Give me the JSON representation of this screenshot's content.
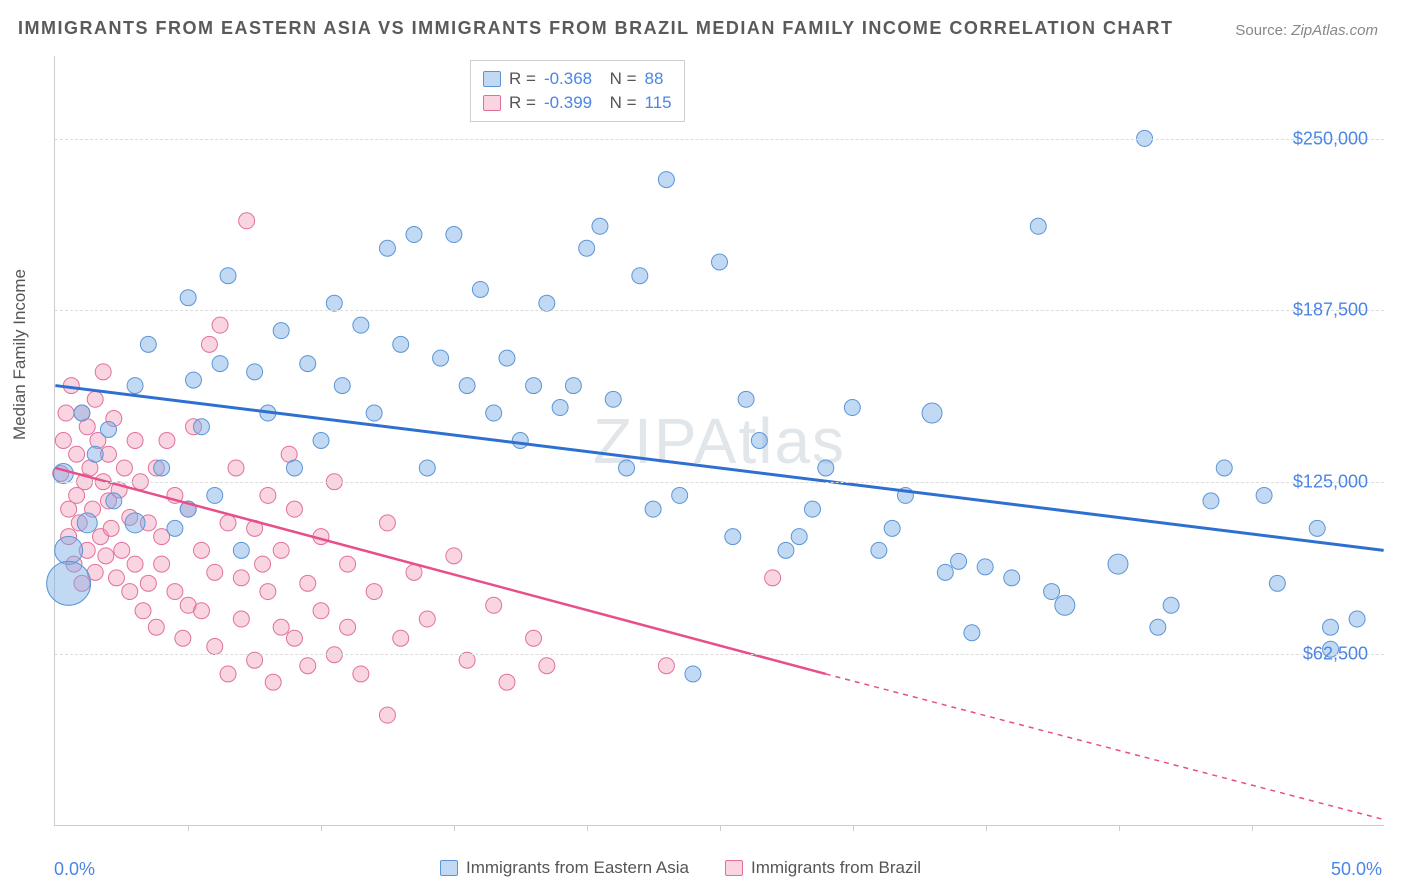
{
  "title": "IMMIGRANTS FROM EASTERN ASIA VS IMMIGRANTS FROM BRAZIL MEDIAN FAMILY INCOME CORRELATION CHART",
  "source": {
    "label": "Source:",
    "name": "ZipAtlas.com"
  },
  "ylabel": "Median Family Income",
  "watermark": "ZIPAtlas",
  "chart": {
    "type": "scatter",
    "background_color": "#ffffff",
    "grid_color": "#dcdcdc",
    "axis_color": "#cccccc",
    "xlim": [
      0,
      50
    ],
    "ylim": [
      0,
      280000
    ],
    "x_ticks_minor": [
      5,
      10,
      15,
      20,
      25,
      30,
      35,
      40,
      45
    ],
    "x_tick_labels": {
      "min": "0.0%",
      "max": "50.0%"
    },
    "y_grid": [
      {
        "value": 62500,
        "label": "$62,500"
      },
      {
        "value": 125000,
        "label": "$125,000"
      },
      {
        "value": 187500,
        "label": "$187,500"
      },
      {
        "value": 250000,
        "label": "$250,000"
      }
    ],
    "label_color": "#4a86e8",
    "label_fontsize": 18,
    "title_color": "#5a5a5a",
    "title_fontsize": 18
  },
  "series": {
    "blue": {
      "name": "Immigrants from Eastern Asia",
      "R": "-0.368",
      "N": "88",
      "fill": "rgba(120,170,230,0.45)",
      "stroke": "#5b95d6",
      "line_color": "#2f6fd0",
      "line_width": 3,
      "trend": {
        "x1": 0,
        "y1": 160000,
        "x2": 50,
        "y2": 100000,
        "dash_after_x": 50
      },
      "points": [
        {
          "x": 0.3,
          "y": 128000,
          "r": 10
        },
        {
          "x": 0.5,
          "y": 100000,
          "r": 14
        },
        {
          "x": 0.5,
          "y": 88000,
          "r": 22
        },
        {
          "x": 1.0,
          "y": 150000,
          "r": 8
        },
        {
          "x": 1.2,
          "y": 110000,
          "r": 10
        },
        {
          "x": 1.5,
          "y": 135000,
          "r": 8
        },
        {
          "x": 2.0,
          "y": 144000,
          "r": 8
        },
        {
          "x": 2.2,
          "y": 118000,
          "r": 8
        },
        {
          "x": 3.0,
          "y": 160000,
          "r": 8
        },
        {
          "x": 3.0,
          "y": 110000,
          "r": 10
        },
        {
          "x": 3.5,
          "y": 175000,
          "r": 8
        },
        {
          "x": 4.0,
          "y": 130000,
          "r": 8
        },
        {
          "x": 4.5,
          "y": 108000,
          "r": 8
        },
        {
          "x": 5.0,
          "y": 192000,
          "r": 8
        },
        {
          "x": 5.0,
          "y": 115000,
          "r": 8
        },
        {
          "x": 5.2,
          "y": 162000,
          "r": 8
        },
        {
          "x": 5.5,
          "y": 145000,
          "r": 8
        },
        {
          "x": 6.0,
          "y": 120000,
          "r": 8
        },
        {
          "x": 6.2,
          "y": 168000,
          "r": 8
        },
        {
          "x": 6.5,
          "y": 200000,
          "r": 8
        },
        {
          "x": 7.0,
          "y": 100000,
          "r": 8
        },
        {
          "x": 7.5,
          "y": 165000,
          "r": 8
        },
        {
          "x": 8.0,
          "y": 150000,
          "r": 8
        },
        {
          "x": 8.5,
          "y": 180000,
          "r": 8
        },
        {
          "x": 9.0,
          "y": 130000,
          "r": 8
        },
        {
          "x": 9.5,
          "y": 168000,
          "r": 8
        },
        {
          "x": 10.0,
          "y": 140000,
          "r": 8
        },
        {
          "x": 10.5,
          "y": 190000,
          "r": 8
        },
        {
          "x": 10.8,
          "y": 160000,
          "r": 8
        },
        {
          "x": 11.5,
          "y": 182000,
          "r": 8
        },
        {
          "x": 12.0,
          "y": 150000,
          "r": 8
        },
        {
          "x": 12.5,
          "y": 210000,
          "r": 8
        },
        {
          "x": 13.0,
          "y": 175000,
          "r": 8
        },
        {
          "x": 13.5,
          "y": 215000,
          "r": 8
        },
        {
          "x": 14.0,
          "y": 130000,
          "r": 8
        },
        {
          "x": 14.5,
          "y": 170000,
          "r": 8
        },
        {
          "x": 15.0,
          "y": 215000,
          "r": 8
        },
        {
          "x": 15.5,
          "y": 160000,
          "r": 8
        },
        {
          "x": 16.0,
          "y": 195000,
          "r": 8
        },
        {
          "x": 16.5,
          "y": 150000,
          "r": 8
        },
        {
          "x": 17.0,
          "y": 170000,
          "r": 8
        },
        {
          "x": 17.5,
          "y": 140000,
          "r": 8
        },
        {
          "x": 18.0,
          "y": 160000,
          "r": 8
        },
        {
          "x": 18.5,
          "y": 190000,
          "r": 8
        },
        {
          "x": 19.0,
          "y": 152000,
          "r": 8
        },
        {
          "x": 19.5,
          "y": 160000,
          "r": 8
        },
        {
          "x": 20.0,
          "y": 210000,
          "r": 8
        },
        {
          "x": 20.5,
          "y": 218000,
          "r": 8
        },
        {
          "x": 21.0,
          "y": 155000,
          "r": 8
        },
        {
          "x": 21.5,
          "y": 130000,
          "r": 8
        },
        {
          "x": 22.0,
          "y": 200000,
          "r": 8
        },
        {
          "x": 22.5,
          "y": 115000,
          "r": 8
        },
        {
          "x": 23.0,
          "y": 235000,
          "r": 8
        },
        {
          "x": 23.5,
          "y": 120000,
          "r": 8
        },
        {
          "x": 24.0,
          "y": 55000,
          "r": 8
        },
        {
          "x": 25.0,
          "y": 205000,
          "r": 8
        },
        {
          "x": 25.5,
          "y": 105000,
          "r": 8
        },
        {
          "x": 26.0,
          "y": 155000,
          "r": 8
        },
        {
          "x": 26.5,
          "y": 140000,
          "r": 8
        },
        {
          "x": 27.5,
          "y": 100000,
          "r": 8
        },
        {
          "x": 28.0,
          "y": 105000,
          "r": 8
        },
        {
          "x": 28.5,
          "y": 115000,
          "r": 8
        },
        {
          "x": 29.0,
          "y": 130000,
          "r": 8
        },
        {
          "x": 30.0,
          "y": 152000,
          "r": 8
        },
        {
          "x": 31.0,
          "y": 100000,
          "r": 8
        },
        {
          "x": 31.5,
          "y": 108000,
          "r": 8
        },
        {
          "x": 32.0,
          "y": 120000,
          "r": 8
        },
        {
          "x": 33.0,
          "y": 150000,
          "r": 10
        },
        {
          "x": 33.5,
          "y": 92000,
          "r": 8
        },
        {
          "x": 34.0,
          "y": 96000,
          "r": 8
        },
        {
          "x": 34.5,
          "y": 70000,
          "r": 8
        },
        {
          "x": 35.0,
          "y": 94000,
          "r": 8
        },
        {
          "x": 36.0,
          "y": 90000,
          "r": 8
        },
        {
          "x": 37.0,
          "y": 218000,
          "r": 8
        },
        {
          "x": 37.5,
          "y": 85000,
          "r": 8
        },
        {
          "x": 38.0,
          "y": 80000,
          "r": 10
        },
        {
          "x": 40.0,
          "y": 95000,
          "r": 10
        },
        {
          "x": 41.0,
          "y": 250000,
          "r": 8
        },
        {
          "x": 41.5,
          "y": 72000,
          "r": 8
        },
        {
          "x": 42.0,
          "y": 80000,
          "r": 8
        },
        {
          "x": 43.5,
          "y": 118000,
          "r": 8
        },
        {
          "x": 44.0,
          "y": 130000,
          "r": 8
        },
        {
          "x": 45.5,
          "y": 120000,
          "r": 8
        },
        {
          "x": 46.0,
          "y": 88000,
          "r": 8
        },
        {
          "x": 47.5,
          "y": 108000,
          "r": 8
        },
        {
          "x": 48.0,
          "y": 72000,
          "r": 8
        },
        {
          "x": 48.0,
          "y": 64000,
          "r": 8
        },
        {
          "x": 49.0,
          "y": 75000,
          "r": 8
        }
      ]
    },
    "pink": {
      "name": "Immigrants from Brazil",
      "R": "-0.399",
      "N": "115",
      "fill": "rgba(240,150,180,0.40)",
      "stroke": "#e36f9e",
      "line_color": "#e84e8a",
      "line_width": 2.5,
      "trend": {
        "x1": 0,
        "y1": 130000,
        "x2": 29,
        "y2": 55000,
        "dash_after_x": 29,
        "dash_x2": 50,
        "dash_y2": 2000
      },
      "points": [
        {
          "x": 0.2,
          "y": 128000,
          "r": 8
        },
        {
          "x": 0.3,
          "y": 140000,
          "r": 8
        },
        {
          "x": 0.4,
          "y": 150000,
          "r": 8
        },
        {
          "x": 0.5,
          "y": 115000,
          "r": 8
        },
        {
          "x": 0.5,
          "y": 105000,
          "r": 8
        },
        {
          "x": 0.6,
          "y": 160000,
          "r": 8
        },
        {
          "x": 0.7,
          "y": 95000,
          "r": 8
        },
        {
          "x": 0.8,
          "y": 120000,
          "r": 8
        },
        {
          "x": 0.8,
          "y": 135000,
          "r": 8
        },
        {
          "x": 0.9,
          "y": 110000,
          "r": 8
        },
        {
          "x": 1.0,
          "y": 150000,
          "r": 8
        },
        {
          "x": 1.0,
          "y": 88000,
          "r": 8
        },
        {
          "x": 1.1,
          "y": 125000,
          "r": 8
        },
        {
          "x": 1.2,
          "y": 145000,
          "r": 8
        },
        {
          "x": 1.2,
          "y": 100000,
          "r": 8
        },
        {
          "x": 1.3,
          "y": 130000,
          "r": 8
        },
        {
          "x": 1.4,
          "y": 115000,
          "r": 8
        },
        {
          "x": 1.5,
          "y": 155000,
          "r": 8
        },
        {
          "x": 1.5,
          "y": 92000,
          "r": 8
        },
        {
          "x": 1.6,
          "y": 140000,
          "r": 8
        },
        {
          "x": 1.7,
          "y": 105000,
          "r": 8
        },
        {
          "x": 1.8,
          "y": 125000,
          "r": 8
        },
        {
          "x": 1.8,
          "y": 165000,
          "r": 8
        },
        {
          "x": 1.9,
          "y": 98000,
          "r": 8
        },
        {
          "x": 2.0,
          "y": 135000,
          "r": 8
        },
        {
          "x": 2.0,
          "y": 118000,
          "r": 8
        },
        {
          "x": 2.1,
          "y": 108000,
          "r": 8
        },
        {
          "x": 2.2,
          "y": 148000,
          "r": 8
        },
        {
          "x": 2.3,
          "y": 90000,
          "r": 8
        },
        {
          "x": 2.4,
          "y": 122000,
          "r": 8
        },
        {
          "x": 2.5,
          "y": 100000,
          "r": 8
        },
        {
          "x": 2.6,
          "y": 130000,
          "r": 8
        },
        {
          "x": 2.8,
          "y": 85000,
          "r": 8
        },
        {
          "x": 2.8,
          "y": 112000,
          "r": 8
        },
        {
          "x": 3.0,
          "y": 95000,
          "r": 8
        },
        {
          "x": 3.0,
          "y": 140000,
          "r": 8
        },
        {
          "x": 3.2,
          "y": 125000,
          "r": 8
        },
        {
          "x": 3.3,
          "y": 78000,
          "r": 8
        },
        {
          "x": 3.5,
          "y": 110000,
          "r": 8
        },
        {
          "x": 3.5,
          "y": 88000,
          "r": 8
        },
        {
          "x": 3.8,
          "y": 72000,
          "r": 8
        },
        {
          "x": 3.8,
          "y": 130000,
          "r": 8
        },
        {
          "x": 4.0,
          "y": 105000,
          "r": 8
        },
        {
          "x": 4.0,
          "y": 95000,
          "r": 8
        },
        {
          "x": 4.2,
          "y": 140000,
          "r": 8
        },
        {
          "x": 4.5,
          "y": 120000,
          "r": 8
        },
        {
          "x": 4.5,
          "y": 85000,
          "r": 8
        },
        {
          "x": 4.8,
          "y": 68000,
          "r": 8
        },
        {
          "x": 5.0,
          "y": 80000,
          "r": 8
        },
        {
          "x": 5.0,
          "y": 115000,
          "r": 8
        },
        {
          "x": 5.2,
          "y": 145000,
          "r": 8
        },
        {
          "x": 5.5,
          "y": 100000,
          "r": 8
        },
        {
          "x": 5.5,
          "y": 78000,
          "r": 8
        },
        {
          "x": 5.8,
          "y": 175000,
          "r": 8
        },
        {
          "x": 6.0,
          "y": 65000,
          "r": 8
        },
        {
          "x": 6.0,
          "y": 92000,
          "r": 8
        },
        {
          "x": 6.2,
          "y": 182000,
          "r": 8
        },
        {
          "x": 6.5,
          "y": 110000,
          "r": 8
        },
        {
          "x": 6.5,
          "y": 55000,
          "r": 8
        },
        {
          "x": 6.8,
          "y": 130000,
          "r": 8
        },
        {
          "x": 7.0,
          "y": 90000,
          "r": 8
        },
        {
          "x": 7.0,
          "y": 75000,
          "r": 8
        },
        {
          "x": 7.2,
          "y": 220000,
          "r": 8
        },
        {
          "x": 7.5,
          "y": 108000,
          "r": 8
        },
        {
          "x": 7.5,
          "y": 60000,
          "r": 8
        },
        {
          "x": 7.8,
          "y": 95000,
          "r": 8
        },
        {
          "x": 8.0,
          "y": 85000,
          "r": 8
        },
        {
          "x": 8.0,
          "y": 120000,
          "r": 8
        },
        {
          "x": 8.2,
          "y": 52000,
          "r": 8
        },
        {
          "x": 8.5,
          "y": 72000,
          "r": 8
        },
        {
          "x": 8.5,
          "y": 100000,
          "r": 8
        },
        {
          "x": 8.8,
          "y": 135000,
          "r": 8
        },
        {
          "x": 9.0,
          "y": 115000,
          "r": 8
        },
        {
          "x": 9.0,
          "y": 68000,
          "r": 8
        },
        {
          "x": 9.5,
          "y": 88000,
          "r": 8
        },
        {
          "x": 9.5,
          "y": 58000,
          "r": 8
        },
        {
          "x": 10.0,
          "y": 78000,
          "r": 8
        },
        {
          "x": 10.0,
          "y": 105000,
          "r": 8
        },
        {
          "x": 10.5,
          "y": 125000,
          "r": 8
        },
        {
          "x": 10.5,
          "y": 62000,
          "r": 8
        },
        {
          "x": 11.0,
          "y": 95000,
          "r": 8
        },
        {
          "x": 11.0,
          "y": 72000,
          "r": 8
        },
        {
          "x": 11.5,
          "y": 55000,
          "r": 8
        },
        {
          "x": 12.0,
          "y": 85000,
          "r": 8
        },
        {
          "x": 12.5,
          "y": 40000,
          "r": 8
        },
        {
          "x": 12.5,
          "y": 110000,
          "r": 8
        },
        {
          "x": 13.0,
          "y": 68000,
          "r": 8
        },
        {
          "x": 13.5,
          "y": 92000,
          "r": 8
        },
        {
          "x": 14.0,
          "y": 75000,
          "r": 8
        },
        {
          "x": 15.0,
          "y": 98000,
          "r": 8
        },
        {
          "x": 15.5,
          "y": 60000,
          "r": 8
        },
        {
          "x": 16.5,
          "y": 80000,
          "r": 8
        },
        {
          "x": 17.0,
          "y": 52000,
          "r": 8
        },
        {
          "x": 18.0,
          "y": 68000,
          "r": 8
        },
        {
          "x": 18.5,
          "y": 58000,
          "r": 8
        },
        {
          "x": 23.0,
          "y": 58000,
          "r": 8
        },
        {
          "x": 27.0,
          "y": 90000,
          "r": 8
        }
      ]
    }
  },
  "legend": {
    "blue_label": "Immigrants from Eastern Asia",
    "pink_label": "Immigrants from Brazil"
  }
}
